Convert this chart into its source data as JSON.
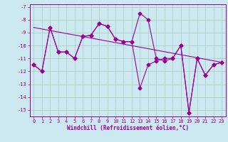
{
  "bg_color": "#cce8f0",
  "line_color": "#990099",
  "grid_color": "#aaccbb",
  "xlabel": "Windchill (Refroidissement éolien,°C)",
  "xlim": [
    -0.5,
    23.5
  ],
  "ylim": [
    -15.5,
    -6.8
  ],
  "yticks": [
    -7,
    -8,
    -9,
    -10,
    -11,
    -12,
    -13,
    -14,
    -15
  ],
  "xticks": [
    0,
    1,
    2,
    3,
    4,
    5,
    6,
    7,
    8,
    9,
    10,
    11,
    12,
    13,
    14,
    15,
    16,
    17,
    18,
    19,
    20,
    21,
    22,
    23
  ],
  "main_x": [
    0,
    1,
    2,
    3,
    4,
    5,
    6,
    7,
    8,
    9,
    10,
    11,
    12,
    13,
    14,
    15,
    16,
    17,
    18,
    19,
    20,
    21,
    22,
    23
  ],
  "main_y": [
    -11.5,
    -12.0,
    -8.6,
    -10.5,
    -10.5,
    -11.0,
    -9.3,
    -9.2,
    -8.3,
    -8.5,
    -9.5,
    -9.7,
    -9.7,
    -7.5,
    -8.0,
    -11.0,
    -11.2,
    -11.0,
    -10.0,
    -15.2,
    -11.0,
    -12.3,
    -11.5,
    -11.3
  ],
  "low_x": [
    0,
    1,
    2,
    3,
    4,
    5,
    6,
    7,
    8,
    9,
    10,
    11,
    12,
    13,
    14,
    15,
    16,
    17,
    18,
    19,
    20,
    21,
    22,
    23
  ],
  "low_y": [
    -11.5,
    -12.0,
    -8.6,
    -10.5,
    -10.5,
    -11.0,
    -9.3,
    -9.2,
    -8.3,
    -8.5,
    -9.5,
    -9.7,
    -9.7,
    -13.3,
    -11.5,
    -11.2,
    -11.0,
    -11.0,
    -10.0,
    -15.2,
    -11.0,
    -12.3,
    -11.5,
    -11.3
  ],
  "trend_x": [
    0,
    23
  ],
  "trend_y": [
    -8.6,
    -11.3
  ],
  "marker_size": 2.5,
  "linewidth": 0.8,
  "xlabel_fontsize": 5.5,
  "tick_fontsize": 5.0
}
